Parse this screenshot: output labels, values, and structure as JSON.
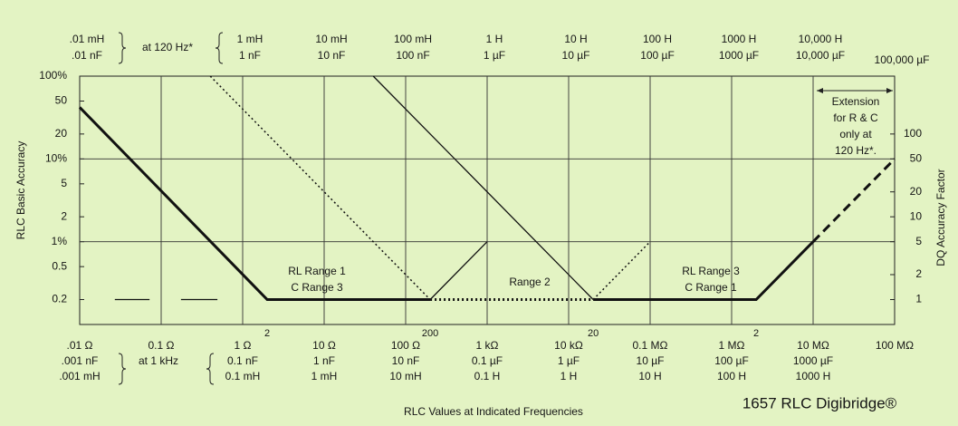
{
  "chart_data": {
    "type": "line",
    "title": "1657 RLC Digibridge®",
    "xlabel": "RLC Values at Indicated Frequencies",
    "ylabel": "RLC Basic Accuracy",
    "y2label": "DQ Accuracy Factor",
    "xscale": "log",
    "yscale": "log",
    "xlim": [
      0.01,
      100000000
    ],
    "ylim": [
      0.1,
      100
    ],
    "y2lim": [
      0.5,
      500
    ],
    "xgrid": true,
    "ygrid": [
      1,
      10
    ],
    "yticks": [
      {
        "value": 100,
        "label": "100%"
      },
      50,
      20,
      {
        "value": 10,
        "label": "10%"
      },
      5,
      2,
      {
        "value": 1,
        "label": "1%"
      },
      0.5,
      0.2
    ],
    "y2ticks": [
      100,
      50,
      20,
      10,
      5,
      2,
      1
    ],
    "top_note": "at 120 Hz*",
    "top_ticks": [
      {
        "value": 0.01,
        "lines": [
          ".01 mH",
          ".01 nF"
        ]
      },
      {
        "value": 1,
        "lines": [
          "1 mH",
          "1 nF"
        ]
      },
      {
        "value": 10,
        "lines": [
          "10 mH",
          "10 nF"
        ]
      },
      {
        "value": 100,
        "lines": [
          "100 mH",
          "100 nF"
        ]
      },
      {
        "value": 1000,
        "lines": [
          "1 H",
          "1 µF"
        ]
      },
      {
        "value": 10000,
        "lines": [
          "10 H",
          "10 µF"
        ]
      },
      {
        "value": 100000,
        "lines": [
          "100 H",
          "100 µF"
        ]
      },
      {
        "value": 1000000,
        "lines": [
          "1000 H",
          "1000 µF"
        ]
      },
      {
        "value": 10000000,
        "lines": [
          "10,000 H",
          "10,000 µF"
        ]
      },
      {
        "value": 100000000,
        "lines": [
          null,
          "100,000 µF"
        ]
      }
    ],
    "bottom_note": "at 1 kHz",
    "bottom_ticks": [
      {
        "value": 0.01,
        "lines": [
          ".01 Ω",
          ".001 nF",
          ".001 mH"
        ]
      },
      {
        "value": 0.1,
        "lines": [
          "0.1 Ω",
          null,
          null
        ]
      },
      {
        "value": 1,
        "lines": [
          "1 Ω",
          "0.1 nF",
          "0.1 mH"
        ]
      },
      {
        "value": 10,
        "lines": [
          "10 Ω",
          "1 nF",
          "1 mH"
        ]
      },
      {
        "value": 100,
        "lines": [
          "100 Ω",
          "10 nF",
          "10 mH"
        ]
      },
      {
        "value": 1000,
        "lines": [
          "1 kΩ",
          "0.1 µF",
          "0.1 H"
        ]
      },
      {
        "value": 10000,
        "lines": [
          "10 kΩ",
          "1 µF",
          "1 H"
        ]
      },
      {
        "value": 100000,
        "lines": [
          "0.1 MΩ",
          "10 µF",
          "10 H"
        ]
      },
      {
        "value": 1000000,
        "lines": [
          "1 MΩ",
          "100 µF",
          "100 H"
        ]
      },
      {
        "value": 10000000,
        "lines": [
          "10 MΩ",
          "1000 µF",
          "1000 H"
        ]
      },
      {
        "value": 100000000,
        "lines": [
          "100 MΩ",
          null,
          null
        ]
      }
    ],
    "minor_ticks": [
      {
        "value": 2,
        "label": "2"
      },
      {
        "value": 200,
        "label": "200"
      },
      {
        "value": 20000,
        "label": "20"
      },
      {
        "value": 2000000,
        "label": "2"
      }
    ],
    "series": [
      {
        "color": "#111111",
        "width": 3,
        "dash": "solid",
        "x": [
          0.01,
          2,
          200
        ],
        "values": [
          42,
          0.2,
          0.2
        ]
      },
      {
        "color": "#111111",
        "width": 3,
        "dash": "dotted",
        "x": [
          200,
          20000
        ],
        "values": [
          0.2,
          0.2
        ]
      },
      {
        "color": "#111111",
        "width": 3,
        "dash": "solid",
        "x": [
          20000,
          2000000,
          10000000
        ],
        "values": [
          0.2,
          0.2,
          1
        ]
      },
      {
        "color": "#111111",
        "width": 3,
        "dash": "dashed",
        "x": [
          10000000,
          100000000
        ],
        "values": [
          1,
          10
        ]
      },
      {
        "color": "#111111",
        "width": 1.3,
        "dash": "solid",
        "x": [
          200,
          1000
        ],
        "values": [
          0.2,
          1
        ]
      },
      {
        "color": "#111111",
        "width": 1.3,
        "dash": "solid",
        "x": [
          40,
          20000
        ],
        "values": [
          100,
          0.2
        ]
      },
      {
        "color": "#111111",
        "width": 1.5,
        "dash": "dotted",
        "x": [
          0.4,
          200
        ],
        "values": [
          100,
          0.2
        ]
      },
      {
        "color": "#111111",
        "width": 1.5,
        "dash": "dotted",
        "x": [
          20000,
          100000
        ],
        "values": [
          0.2,
          1
        ]
      },
      {
        "color": "#111111",
        "width": 1.3,
        "dash": "solid",
        "x": [
          0.027,
          0.072,
          0.12,
          0.175,
          0.49
        ],
        "values": [
          0.2,
          0.2,
          null,
          0.2,
          0.2
        ]
      }
    ],
    "annotations": [
      {
        "lines": [
          "RL Range 1",
          "C Range 3"
        ]
      },
      {
        "lines": [
          "Range 2"
        ]
      },
      {
        "lines": [
          "RL Range 3",
          "C Range 1"
        ]
      },
      {
        "lines": [
          "Extension",
          "for R & C",
          "only at",
          "120 Hz*."
        ]
      }
    ]
  }
}
